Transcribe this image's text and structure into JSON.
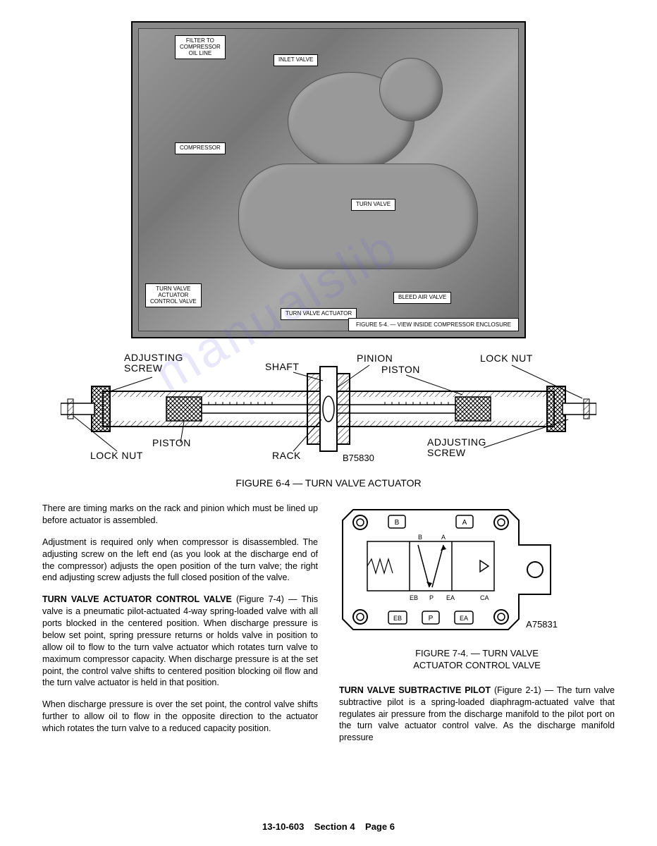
{
  "photo": {
    "callouts": {
      "filter": "FILTER TO\nCOMPRESSOR\nOIL LINE",
      "inlet_valve": "INLET VALVE",
      "compressor": "COMPRESSOR",
      "turn_valve": "TURN VALVE",
      "tv_actuator_control": "TURN VALVE\nACTUATOR\nCONTROL VALVE",
      "tv_actuator": "TURN VALVE ACTUATOR",
      "bleed_air": "BLEED AIR VALVE"
    },
    "caption": "FIGURE 5-4. — VIEW INSIDE COMPRESSOR ENCLOSURE"
  },
  "diagram_64": {
    "labels": {
      "adjusting_screw_left": "ADJUSTING\nSCREW",
      "shaft": "SHAFT",
      "pinion": "PINION",
      "lock_nut_right": "LOCK NUT",
      "piston_right": "PISTON",
      "piston_left": "PISTON",
      "lock_nut_left": "LOCK NUT",
      "rack": "RACK",
      "adjusting_screw_right": "ADJUSTING\nSCREW"
    },
    "drawing_number": "B75830",
    "caption": "FIGURE 6-4 — TURN VALVE ACTUATOR"
  },
  "body": {
    "p1": "There are timing marks on the rack and pinion which must be lined up before actuator is assembled.",
    "p2": "Adjustment is required only when compressor is disassembled. The adjusting screw on the left end (as you look at the discharge end of the compressor) adjusts the open position of the turn valve; the right end adjusting screw adjusts the full closed position of the valve.",
    "h3": "TURN VALVE ACTUATOR CONTROL VALVE",
    "h3_ref": " (Figure 7-4) — ",
    "p3": "This valve is a pneumatic pilot-actuated 4-way spring-loaded valve with all ports blocked in the centered position. When discharge pressure is below set point, spring pressure returns or holds valve in position to allow oil to flow to the turn valve actuator which rotates turn valve to maximum compressor capacity. When discharge pressure is at the set point, the control valve shifts to centered position blocking oil flow and the turn valve actuator is held in that position.",
    "p4": "When discharge pressure is over the set point, the control valve shifts further to allow oil to flow in the opposite direction to the actuator which rotates the turn valve to a reduced capacity position.",
    "h5": "TURN VALVE SUBTRACTIVE PILOT",
    "h5_ref": " (Figure 2-1) — ",
    "p5": "The turn valve subtractive pilot is a spring-loaded diaphragm-actuated valve that regulates air pressure from the discharge manifold to the pilot port on the turn valve actuator control valve. As the discharge manifold pressure"
  },
  "diagram_74": {
    "ports": {
      "b": "B",
      "a": "A",
      "eb": "EB",
      "p": "P",
      "ea": "EA",
      "ca": "CA"
    },
    "port_boxes": {
      "b": "B",
      "a": "A",
      "eb": "EB",
      "p": "P",
      "ea": "EA"
    },
    "drawing_number": "A75831",
    "caption_l1": "FIGURE 7-4. — TURN VALVE",
    "caption_l2": "ACTUATOR CONTROL VALVE"
  },
  "footer": {
    "doc": "13-10-603",
    "section": "Section 4",
    "page": "Page 6"
  },
  "colors": {
    "text": "#000000",
    "bg": "#ffffff",
    "photo_tone": "#888888",
    "watermark": "rgba(100,100,220,0.15)"
  }
}
